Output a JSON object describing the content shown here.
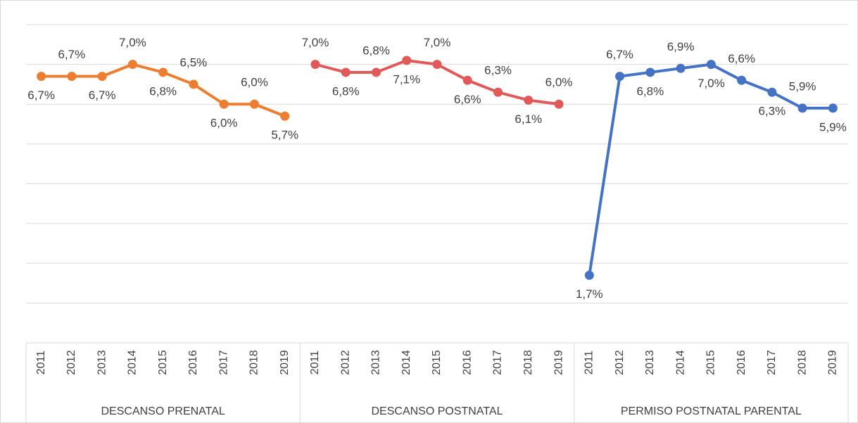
{
  "chart_data": {
    "type": "line",
    "groups": [
      "DESCANSO PRENATAL",
      "DESCANSO POSTNATAL",
      "PERMISO POSTNATAL PARENTAL"
    ],
    "categories": [
      "2011",
      "2012",
      "2013",
      "2014",
      "2015",
      "2016",
      "2017",
      "2018",
      "2019",
      "2011",
      "2012",
      "2013",
      "2014",
      "2015",
      "2016",
      "2017",
      "2018",
      "2019",
      "2011",
      "2012",
      "2013",
      "2014",
      "2015",
      "2016",
      "2017",
      "2018",
      "2019"
    ],
    "series": [
      {
        "color": "#ed7d31",
        "values": [
          6.7,
          6.7,
          6.7,
          7.0,
          6.8,
          6.5,
          6.0,
          6.0,
          5.7,
          null,
          null,
          null,
          null,
          null,
          null,
          null,
          null,
          null,
          null,
          null,
          null,
          null,
          null,
          null,
          null,
          null,
          null
        ],
        "value_labels": [
          "6,7%",
          "6,7%",
          "6,7%",
          "7,0%",
          "6,8%",
          "6,5%",
          "6,0%",
          "6,0%",
          "5,7%",
          null,
          null,
          null,
          null,
          null,
          null,
          null,
          null,
          null,
          null,
          null,
          null,
          null,
          null,
          null,
          null,
          null,
          null
        ]
      },
      {
        "color": "#e05a5a",
        "values": [
          null,
          null,
          null,
          null,
          null,
          null,
          null,
          null,
          null,
          7.0,
          6.8,
          6.8,
          7.1,
          7.0,
          6.6,
          6.3,
          6.1,
          6.0,
          null,
          null,
          null,
          null,
          null,
          null,
          null,
          null,
          null
        ],
        "value_labels": [
          null,
          null,
          null,
          null,
          null,
          null,
          null,
          null,
          null,
          "7,0%",
          "6,8%",
          "6,8%",
          "7,1%",
          "7,0%",
          "6,6%",
          "6,3%",
          "6,1%",
          "6,0%",
          null,
          null,
          null,
          null,
          null,
          null,
          null,
          null,
          null
        ]
      },
      {
        "color": "#4472c4",
        "values": [
          null,
          null,
          null,
          null,
          null,
          null,
          null,
          null,
          null,
          null,
          null,
          null,
          null,
          null,
          null,
          null,
          null,
          null,
          1.7,
          6.7,
          6.8,
          6.9,
          7.0,
          6.6,
          6.3,
          5.9,
          5.9
        ],
        "value_labels": [
          null,
          null,
          null,
          null,
          null,
          null,
          null,
          null,
          null,
          null,
          null,
          null,
          null,
          null,
          null,
          null,
          null,
          null,
          "1,7%",
          "6,7%",
          "6,8%",
          "6,9%",
          "7,0%",
          "6,6%",
          "6,3%",
          "5,9%",
          "5,9%"
        ]
      }
    ],
    "ylim": [
      0,
      8
    ],
    "yticks": [
      0,
      1,
      2,
      3,
      4,
      5,
      6,
      7,
      8
    ],
    "grid": true
  }
}
